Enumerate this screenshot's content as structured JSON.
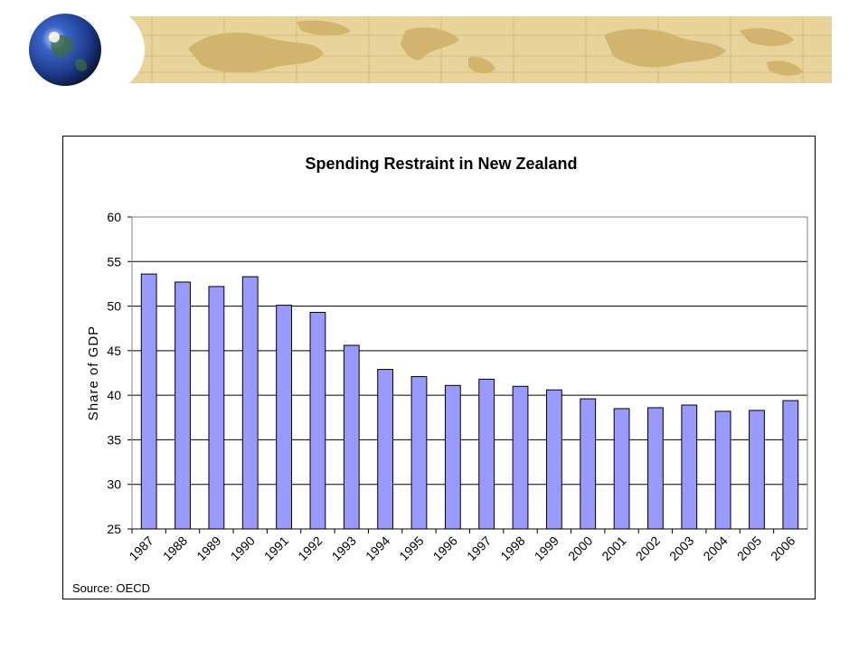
{
  "colors": {
    "bar_fill": "#9999ff",
    "bar_stroke": "#000000",
    "banner_parchment": "#e8d49a",
    "banner_land": "#d2b46e",
    "globe_ocean": "#1e3a8a"
  },
  "header": {
    "decor_icon": "globe-icon"
  },
  "chart_data": {
    "type": "bar",
    "title": "Spending Restraint in New Zealand",
    "xlabel": "",
    "ylabel": "Share of GDP",
    "ylim": [
      25,
      60
    ],
    "yticks": [
      "25",
      "30",
      "35",
      "40",
      "45",
      "50",
      "55",
      "60"
    ],
    "grid": true,
    "legend": "none",
    "categories": [
      "1987",
      "1988",
      "1989",
      "1990",
      "1991",
      "1992",
      "1993",
      "1994",
      "1995",
      "1996",
      "1997",
      "1998",
      "1999",
      "2000",
      "2001",
      "2002",
      "2003",
      "2004",
      "2005",
      "2006"
    ],
    "values": [
      53.6,
      52.7,
      52.2,
      53.3,
      50.1,
      49.3,
      45.6,
      42.9,
      42.1,
      41.1,
      41.8,
      41.0,
      40.6,
      39.6,
      38.5,
      38.6,
      38.9,
      38.2,
      38.3,
      39.4
    ],
    "source": "Source: OECD"
  }
}
